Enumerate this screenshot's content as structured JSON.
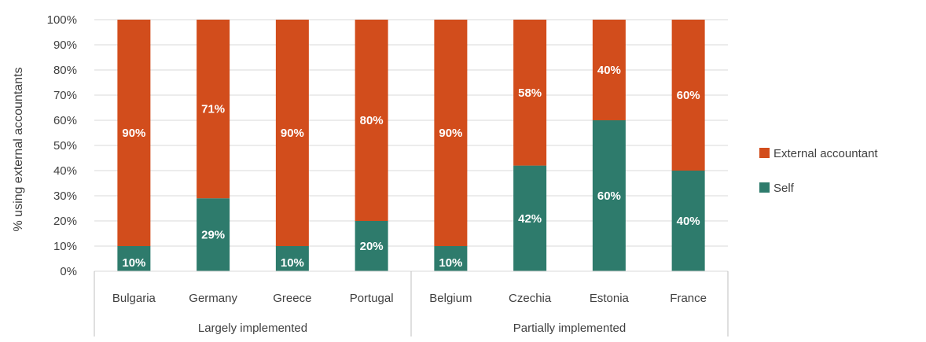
{
  "chart_data": {
    "type": "bar",
    "stacked": true,
    "title": "",
    "xlabel": "",
    "ylabel": "% using external accountants",
    "ylim": [
      0,
      100
    ],
    "yticks": [
      "0%",
      "10%",
      "20%",
      "30%",
      "40%",
      "50%",
      "60%",
      "70%",
      "80%",
      "90%",
      "100%"
    ],
    "grid": true,
    "legend_position": "right",
    "categories": [
      "Bulgaria",
      "Germany",
      "Greece",
      "Portugal",
      "Belgium",
      "Czechia",
      "Estonia",
      "France"
    ],
    "groups": [
      {
        "label": "Largely implemented",
        "categories": [
          "Bulgaria",
          "Germany",
          "Greece",
          "Portugal"
        ]
      },
      {
        "label": "Partially implemented",
        "categories": [
          "Belgium",
          "Czechia",
          "Estonia",
          "France"
        ]
      }
    ],
    "series": [
      {
        "name": "Self",
        "color": "#2e7b6c",
        "values": [
          10,
          29,
          10,
          20,
          10,
          42,
          60,
          40
        ],
        "labels": [
          "10%",
          "29%",
          "10%",
          "20%",
          "10%",
          "42%",
          "60%",
          "40%"
        ]
      },
      {
        "name": "External accountant",
        "color": "#d24d1c",
        "values": [
          90,
          71,
          90,
          80,
          90,
          58,
          40,
          60
        ],
        "labels": [
          "90%",
          "71%",
          "90%",
          "80%",
          "90%",
          "58%",
          "40%",
          "60%"
        ]
      }
    ],
    "legend_order": [
      "External accountant",
      "Self"
    ]
  }
}
